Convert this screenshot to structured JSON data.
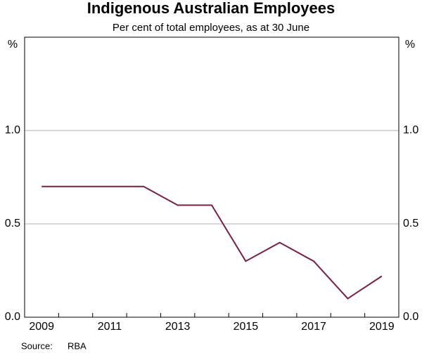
{
  "chart_data": {
    "type": "line",
    "title": "Indigenous Australian Employees",
    "subtitle": "Per cent of total employees, as at 30 June",
    "y_unit": "%",
    "source_label": "Source:",
    "source": "RBA",
    "categories": [
      "2009",
      null,
      "2011",
      null,
      "2013",
      null,
      "2015",
      null,
      "2017",
      null,
      "2019"
    ],
    "series": [
      {
        "name": "Indigenous Australian Employees",
        "color": "#7b1e48",
        "values": [
          0.7,
          0.7,
          0.7,
          0.7,
          0.6,
          0.6,
          0.3,
          0.4,
          0.3,
          0.1,
          0.22
        ]
      }
    ],
    "ylim": [
      0,
      1.5
    ],
    "yticks": [
      {
        "value": 0,
        "label": "0.0"
      },
      0.5,
      {
        "value": 1,
        "label": "1.0"
      }
    ],
    "grid": true
  }
}
